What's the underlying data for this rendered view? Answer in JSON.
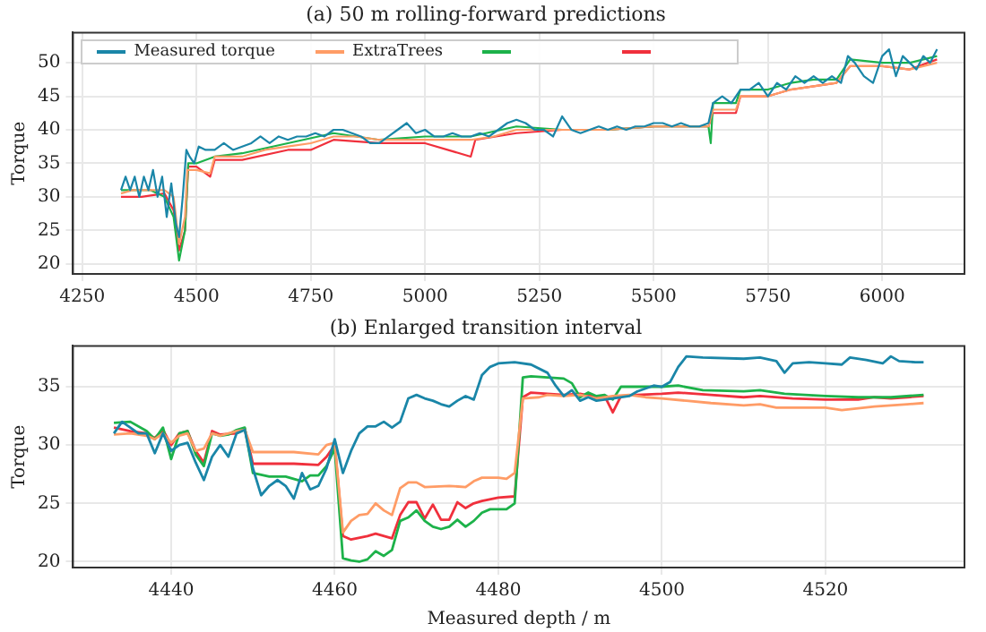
{
  "chart_data": [
    {
      "type": "line",
      "title": "(a) 50 m rolling-forward predictions",
      "ylabel": "Torque",
      "xlim": [
        4230,
        6180
      ],
      "xticks": [
        4250,
        4500,
        4750,
        5000,
        5250,
        5500,
        5750,
        6000
      ],
      "ylim": [
        18.5,
        54.5
      ],
      "yticks": [
        20,
        25,
        30,
        35,
        40,
        45,
        50
      ],
      "grid": true,
      "legend": "top left",
      "series": [
        {
          "name": "Measured torque",
          "color": "#1a86a8",
          "x": [
            4335,
            4345,
            4355,
            4365,
            4375,
            4385,
            4395,
            4405,
            4415,
            4425,
            4435,
            4445,
            4455,
            4462,
            4470,
            4478,
            4485,
            4495,
            4505,
            4520,
            4540,
            4560,
            4580,
            4600,
            4620,
            4640,
            4660,
            4680,
            4700,
            4720,
            4740,
            4760,
            4780,
            4800,
            4820,
            4840,
            4860,
            4880,
            4900,
            4920,
            4940,
            4960,
            4980,
            5000,
            5020,
            5040,
            5060,
            5080,
            5100,
            5120,
            5140,
            5160,
            5180,
            5200,
            5220,
            5240,
            5260,
            5280,
            5300,
            5320,
            5340,
            5360,
            5380,
            5400,
            5420,
            5440,
            5460,
            5480,
            5500,
            5520,
            5540,
            5560,
            5580,
            5600,
            5620,
            5630,
            5650,
            5670,
            5690,
            5710,
            5730,
            5750,
            5770,
            5790,
            5810,
            5830,
            5850,
            5870,
            5890,
            5910,
            5925,
            5940,
            5960,
            5980,
            6000,
            6015,
            6030,
            6045,
            6060,
            6075,
            6090,
            6105,
            6120
          ],
          "values": [
            31,
            33,
            31,
            33,
            30,
            33,
            31,
            34,
            30,
            33,
            27,
            32,
            26,
            24,
            30,
            37,
            36,
            35,
            37.5,
            37,
            37,
            38,
            37,
            37.5,
            38,
            39,
            38,
            39,
            38.5,
            39,
            39,
            39.5,
            39,
            40,
            40,
            39.5,
            39,
            38,
            38,
            39,
            40,
            41,
            39.5,
            40,
            39,
            39,
            39.5,
            39,
            39,
            39.5,
            39,
            40,
            41,
            41.5,
            41,
            40,
            40,
            39,
            42,
            40,
            39.5,
            40,
            40.5,
            40,
            40.5,
            40,
            40.5,
            40.5,
            41,
            41,
            40.5,
            41,
            40.5,
            40.5,
            41,
            44,
            45,
            44,
            46,
            46,
            47,
            45,
            47,
            46,
            48,
            47,
            48,
            47,
            48,
            47,
            51,
            50,
            48,
            47,
            51,
            52,
            48,
            51,
            50,
            49,
            51,
            50,
            52
          ]
        },
        {
          "name": "ExtraTrees",
          "color": "#ff9c66",
          "x": [
            4335,
            4360,
            4400,
            4430,
            4450,
            4462,
            4475,
            4480,
            4500,
            4530,
            4540,
            4600,
            4650,
            4700,
            4750,
            4800,
            4850,
            4900,
            5000,
            5100,
            5150,
            5200,
            5300,
            5400,
            5500,
            5620,
            5630,
            5680,
            5690,
            5750,
            5800,
            5850,
            5900,
            5930,
            6000,
            6060,
            6120
          ],
          "values": [
            30.5,
            31,
            31,
            31,
            30,
            23,
            27,
            34,
            34,
            33.5,
            36,
            36,
            37,
            37.5,
            38,
            39,
            39,
            38.5,
            38.5,
            38.5,
            39,
            40,
            40,
            40,
            40.5,
            40.5,
            43,
            43,
            45,
            45,
            46,
            46.5,
            47,
            49.5,
            49.5,
            49,
            50
          ]
        },
        {
          "color": "#1db24a",
          "x": [
            4335,
            4400,
            4430,
            4450,
            4462,
            4475,
            4482,
            4500,
            4540,
            4600,
            4700,
            4800,
            4900,
            5000,
            5100,
            5200,
            5300,
            5400,
            5500,
            5620,
            5625,
            5630,
            5680,
            5690,
            5750,
            5800,
            5850,
            5900,
            5930,
            6000,
            6060,
            6120
          ],
          "values": [
            31,
            31,
            30,
            27,
            20.5,
            25,
            35,
            35,
            36,
            36.5,
            38,
            39.5,
            38.5,
            39,
            39,
            40.5,
            40,
            40,
            40.5,
            40.5,
            38,
            44,
            44,
            46,
            46,
            47,
            47.5,
            47.5,
            50.5,
            50,
            50,
            51
          ]
        },
        {
          "color": "#f0303c",
          "x": [
            4335,
            4380,
            4430,
            4450,
            4462,
            4475,
            4482,
            4500,
            4530,
            4540,
            4600,
            4700,
            4750,
            4800,
            4900,
            5000,
            5100,
            5110,
            5200,
            5300,
            5400,
            5500,
            5620,
            5630,
            5680,
            5690,
            5750,
            5800,
            5850,
            5900,
            5930,
            6000,
            6060,
            6120
          ],
          "values": [
            30,
            30,
            30.5,
            28,
            22,
            25,
            34.5,
            34.5,
            33,
            35.5,
            35.5,
            37,
            37,
            38.5,
            38,
            38,
            36,
            38.5,
            39.5,
            40,
            40,
            40.5,
            40.5,
            42.5,
            42.5,
            45,
            45,
            46,
            46.5,
            47,
            49.5,
            49.5,
            49,
            50.5
          ]
        }
      ]
    },
    {
      "type": "line",
      "title": "(b) Enlarged transition interval",
      "xlabel": "Measured depth / m",
      "ylabel": "Torque",
      "xlim": [
        4428,
        4537
      ],
      "xticks": [
        4440,
        4460,
        4480,
        4500,
        4520
      ],
      "ylim": [
        19.5,
        38.5
      ],
      "yticks": [
        20,
        25,
        30,
        35
      ],
      "grid": true,
      "series": [
        {
          "color": "#1a86a8",
          "x": [
            4433,
            4434,
            4436,
            4437,
            4438,
            4439,
            4440,
            4441,
            4442,
            4443,
            4444,
            4445,
            4446,
            4447,
            4448,
            4449,
            4450,
            4451,
            4452,
            4453,
            4454,
            4455,
            4456,
            4457,
            4458,
            4459,
            4460,
            4461,
            4462,
            4463,
            4464,
            4465,
            4466,
            4467,
            4468,
            4469,
            4470,
            4471,
            4472,
            4473,
            4474,
            4475,
            4476,
            4477,
            4478,
            4479,
            4480,
            4482,
            4484,
            4486,
            4487,
            4488,
            4489,
            4490,
            4491,
            4492,
            4494,
            4496,
            4497,
            4499,
            4500,
            4501,
            4502,
            4503,
            4505,
            4510,
            4512,
            4514,
            4515,
            4516,
            4518,
            4520,
            4522,
            4523,
            4525,
            4527,
            4528,
            4529,
            4531,
            4532
          ],
          "values": [
            31,
            32,
            31,
            31,
            29.3,
            31,
            29.5,
            30,
            30.2,
            28.5,
            27,
            29,
            30,
            29,
            31,
            31.3,
            28,
            25.7,
            26.5,
            27,
            26.5,
            25.4,
            27.6,
            26.2,
            26.5,
            28,
            30.5,
            27.6,
            29.5,
            31,
            31.6,
            31.6,
            32,
            31.5,
            32,
            34,
            34.3,
            34,
            33.8,
            33.5,
            33.3,
            33.8,
            34.2,
            33.9,
            36,
            36.7,
            37,
            37.1,
            36.9,
            36.2,
            35.1,
            34.2,
            34.7,
            33.8,
            34.1,
            33.8,
            34,
            34.2,
            34.6,
            35.1,
            35,
            35.4,
            36.7,
            37.6,
            37.5,
            37.4,
            37.5,
            37.2,
            36.2,
            37,
            37.1,
            37,
            36.9,
            37.5,
            37.3,
            37,
            37.6,
            37.2,
            37.1,
            37.1
          ]
        },
        {
          "color": "#ff9c66",
          "x": [
            4433,
            4435,
            4437,
            4438,
            4439,
            4440,
            4441,
            4442,
            4443,
            4444,
            4445,
            4446,
            4447,
            4448,
            4449,
            4450,
            4455,
            4458,
            4459,
            4460,
            4461,
            4462,
            4463,
            4464,
            4465,
            4466,
            4467,
            4468,
            4469,
            4470,
            4471,
            4474,
            4476,
            4477,
            4478,
            4480,
            4481,
            4482,
            4483,
            4485,
            4486,
            4488,
            4490,
            4492,
            4494,
            4496,
            4498,
            4500,
            4503,
            4506,
            4510,
            4512,
            4514,
            4516,
            4520,
            4522,
            4526,
            4528,
            4530,
            4532
          ],
          "values": [
            30.9,
            31,
            30.8,
            30.5,
            31,
            30.2,
            30.8,
            31,
            29.5,
            29.7,
            31,
            30.8,
            31,
            31.2,
            31.3,
            29.4,
            29.4,
            29.2,
            30,
            30.2,
            22.5,
            23.5,
            24,
            24.1,
            25,
            24.4,
            24,
            26.3,
            26.8,
            26.8,
            26.4,
            26.5,
            26.4,
            26.9,
            27.2,
            27.2,
            27.1,
            27.6,
            34,
            34.1,
            34.3,
            34.2,
            34.3,
            34,
            34.2,
            34.3,
            34.1,
            34,
            33.8,
            33.6,
            33.4,
            33.5,
            33.2,
            33.2,
            33.2,
            33,
            33.3,
            33.4,
            33.5,
            33.6
          ]
        },
        {
          "color": "#1db24a",
          "x": [
            4433,
            4435,
            4437,
            4438,
            4439,
            4440,
            4441,
            4442,
            4443,
            4444,
            4445,
            4446,
            4447,
            4448,
            4449,
            4450,
            4452,
            4454,
            4456,
            4457,
            4458,
            4459,
            4460,
            4461,
            4462,
            4463,
            4464,
            4465,
            4466,
            4467,
            4468,
            4469,
            4470,
            4471,
            4472,
            4473,
            4474,
            4475,
            4476,
            4477,
            4478,
            4479,
            4480,
            4481,
            4482,
            4483,
            4484,
            4486,
            4488,
            4489,
            4490,
            4491,
            4492,
            4493,
            4494,
            4495,
            4497,
            4500,
            4502,
            4505,
            4510,
            4512,
            4515,
            4520,
            4524,
            4528,
            4532
          ],
          "values": [
            31.9,
            32,
            31.2,
            30.5,
            31.5,
            28.8,
            31,
            31.2,
            29.2,
            28.2,
            31,
            30.8,
            30.9,
            31.3,
            31.5,
            27.6,
            27.3,
            27.3,
            26.9,
            27.4,
            27.4,
            28.2,
            29.7,
            20.3,
            20.1,
            20,
            20.2,
            20.9,
            20.5,
            21,
            23.5,
            23.8,
            24.4,
            23.5,
            23,
            22.8,
            23,
            23.6,
            23,
            23.5,
            24.2,
            24.5,
            24.5,
            24.5,
            25,
            35.8,
            35.9,
            35.8,
            35.7,
            35.3,
            34.1,
            34.5,
            34.2,
            34.3,
            33.9,
            35,
            35,
            35,
            35.1,
            34.7,
            34.6,
            34.7,
            34.4,
            34.2,
            34.1,
            34.1,
            34.3
          ]
        },
        {
          "color": "#f0303c",
          "x": [
            4433,
            4435,
            4437,
            4438,
            4439,
            4440,
            4441,
            4442,
            4443,
            4444,
            4445,
            4446,
            4448,
            4449,
            4450,
            4455,
            4458,
            4459,
            4460,
            4461,
            4462,
            4464,
            4465,
            4467,
            4468,
            4469,
            4470,
            4471,
            4472,
            4473,
            4474,
            4475,
            4476,
            4477,
            4478,
            4480,
            4482,
            4483,
            4484,
            4486,
            4488,
            4490,
            4492,
            4493,
            4494,
            4495,
            4497,
            4500,
            4502,
            4506,
            4510,
            4512,
            4516,
            4520,
            4524,
            4526,
            4528,
            4530,
            4532
          ],
          "values": [
            31.5,
            31.2,
            31,
            30.6,
            31.3,
            30,
            31,
            31.2,
            29.5,
            28.5,
            31.2,
            30.9,
            31,
            31.4,
            28.4,
            28.4,
            28.3,
            29,
            30,
            22.2,
            21.9,
            22.2,
            22.4,
            22,
            24,
            25.1,
            25.1,
            23.7,
            24.9,
            23.6,
            23.6,
            25.1,
            24.6,
            25,
            25.2,
            25.5,
            25.6,
            34.1,
            34.5,
            34.4,
            34.3,
            34.4,
            34.1,
            34.2,
            32.8,
            34.2,
            34.3,
            34.4,
            34.5,
            34.3,
            34.1,
            34.2,
            34,
            33.9,
            33.9,
            34.1,
            34,
            34.1,
            34.2
          ]
        }
      ]
    }
  ]
}
